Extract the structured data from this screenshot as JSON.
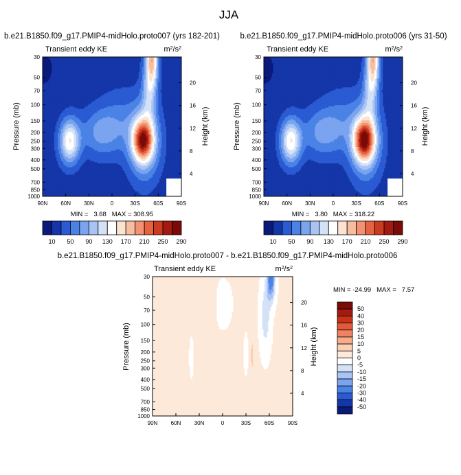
{
  "figure_title": "JJA",
  "colors": {
    "palette": [
      "#0a1a7a",
      "#1436a8",
      "#2a5bd2",
      "#4a82e6",
      "#7aa4ef",
      "#a9c4f4",
      "#d4e2f8",
      "#ffffff",
      "#fbe3cf",
      "#f7bda0",
      "#f29271",
      "#e8623f",
      "#cc3a20",
      "#a51a10",
      "#7a0b06"
    ],
    "diff_palette": [
      "#0a1a7a",
      "#1436a8",
      "#2a5bd2",
      "#4a82e6",
      "#7aa4ef",
      "#a9c4f4",
      "#d4e2f8",
      "#ffffff",
      "#fde9da",
      "#fbd0b5",
      "#f6ad88",
      "#ee8262",
      "#e15a3a",
      "#c73218",
      "#a51a10",
      "#7a0b06"
    ]
  },
  "panel_a": {
    "title": "b.e21.B1850.f09_g17.PMIP4-midHolo.proto007 (yrs 182-201)",
    "variable": "Transient eddy KE",
    "units": "m²/s²",
    "ylabel": "Pressure (mb)",
    "ylabel_right": "Height (km)",
    "minmax": "MIN =   3.68   MAX = 308.95"
  },
  "panel_b": {
    "title": "b.e21.B1850.f09_g17.PMIP4-midHolo.proto006 (yrs 31-50)",
    "variable": "Transient eddy KE",
    "units": "m²/s²",
    "ylabel": "Pressure (mb)",
    "ylabel_right": "Height (km)",
    "minmax": "MIN =   3.80   MAX = 318.22"
  },
  "panel_c": {
    "title": "b.e21.B1850.f09_g17.PMIP4-midHolo.proto007 - b.e21.B1850.f09_g17.PMIP4-midHolo.proto006",
    "variable": "Transient eddy KE",
    "units": "m²/s²",
    "ylabel": "Pressure (mb)",
    "ylabel_right": "Height (km)",
    "minmax": "MIN = -24.99   MAX =   7.57"
  },
  "x_ticks": [
    "90N",
    "60N",
    "30N",
    "0",
    "30S",
    "60S",
    "90S"
  ],
  "p_ticks": [
    "30",
    "50",
    "70",
    "100",
    "150",
    "200",
    "250",
    "300",
    "400",
    "500",
    "700",
    "850",
    "1000"
  ],
  "p_tick_values": [
    30,
    50,
    70,
    100,
    150,
    200,
    250,
    300,
    400,
    500,
    700,
    850,
    1000
  ],
  "h_ticks": [
    "20",
    "16",
    "12",
    "8",
    "4"
  ],
  "h_tick_values": [
    20,
    16,
    12,
    8,
    4
  ],
  "colorbar_labels": [
    "10",
    "50",
    "90",
    "130",
    "170",
    "210",
    "250",
    "290"
  ],
  "diff_colorbar_labels": [
    "50",
    "40",
    "30",
    "20",
    "15",
    "10",
    "5",
    "0",
    "-5",
    "-10",
    "-15",
    "-20",
    "-30",
    "-40",
    "-50"
  ],
  "chart_data": [
    {
      "type": "heatmap",
      "title": "b.e21.B1850.f09_g17.PMIP4-midHolo.proto007 (yrs 182-201)",
      "subtitle": "Transient eddy KE",
      "units": "m²/s²",
      "ylabel": "Pressure (mb)",
      "y2label": "Height (km)",
      "x": [
        "90N",
        "60N",
        "30N",
        "0",
        "30S",
        "60S",
        "90S"
      ],
      "ylim": [
        1000,
        30
      ],
      "levels": [
        10,
        30,
        50,
        70,
        90,
        110,
        130,
        150,
        170,
        190,
        210,
        230,
        250,
        270,
        290
      ],
      "features": [
        {
          "name": "northern jet maximum",
          "lat": "55N",
          "pressure": 250,
          "value": 170
        },
        {
          "name": "southern jet maximum",
          "lat": "40S",
          "pressure": 250,
          "value": 300
        },
        {
          "name": "upper polar max",
          "lat": "50S",
          "pressure": 30,
          "value": 170
        }
      ],
      "min": 3.68,
      "max": 308.95
    },
    {
      "type": "heatmap",
      "title": "b.e21.B1850.f09_g17.PMIP4-midHolo.proto006 (yrs 31-50)",
      "subtitle": "Transient eddy KE",
      "units": "m²/s²",
      "ylabel": "Pressure (mb)",
      "y2label": "Height (km)",
      "x": [
        "90N",
        "60N",
        "30N",
        "0",
        "30S",
        "60S",
        "90S"
      ],
      "ylim": [
        1000,
        30
      ],
      "levels": [
        10,
        30,
        50,
        70,
        90,
        110,
        130,
        150,
        170,
        190,
        210,
        230,
        250,
        270,
        290
      ],
      "features": [
        {
          "name": "northern jet maximum",
          "lat": "55N",
          "pressure": 250,
          "value": 170
        },
        {
          "name": "southern jet maximum",
          "lat": "40S",
          "pressure": 250,
          "value": 310
        },
        {
          "name": "upper polar max",
          "lat": "50S",
          "pressure": 30,
          "value": 170
        }
      ],
      "min": 3.8,
      "max": 318.22
    },
    {
      "type": "heatmap",
      "title": "b.e21.B1850.f09_g17.PMIP4-midHolo.proto007 - b.e21.B1850.f09_g17.PMIP4-midHolo.proto006",
      "subtitle": "Transient eddy KE",
      "units": "m²/s²",
      "ylabel": "Pressure (mb)",
      "y2label": "Height (km)",
      "x": [
        "90N",
        "60N",
        "30N",
        "0",
        "30S",
        "60S",
        "90S"
      ],
      "ylim": [
        1000,
        30
      ],
      "levels": [
        -50,
        -40,
        -30,
        -20,
        -15,
        -10,
        -5,
        0,
        5,
        10,
        15,
        20,
        30,
        40,
        50
      ],
      "features": [
        {
          "name": "negative anomaly upper",
          "lat": "60S",
          "pressure": 30,
          "value": -25
        },
        {
          "name": "positive anomaly",
          "lat": "40S",
          "pressure": 220,
          "value": 7.5
        }
      ],
      "min": -24.99,
      "max": 7.57
    }
  ]
}
